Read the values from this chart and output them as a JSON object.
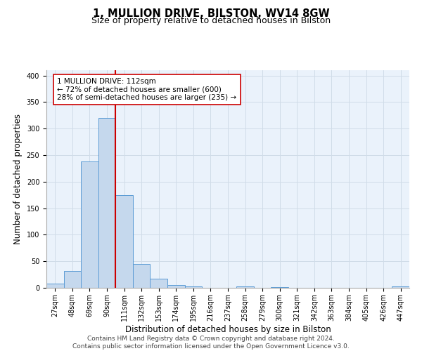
{
  "title": "1, MULLION DRIVE, BILSTON, WV14 8GW",
  "subtitle": "Size of property relative to detached houses in Bilston",
  "xlabel": "Distribution of detached houses by size in Bilston",
  "ylabel": "Number of detached properties",
  "footer_line1": "Contains HM Land Registry data © Crown copyright and database right 2024.",
  "footer_line2": "Contains public sector information licensed under the Open Government Licence v3.0.",
  "bar_labels": [
    "27sqm",
    "48sqm",
    "69sqm",
    "90sqm",
    "111sqm",
    "132sqm",
    "153sqm",
    "174sqm",
    "195sqm",
    "216sqm",
    "237sqm",
    "258sqm",
    "279sqm",
    "300sqm",
    "321sqm",
    "342sqm",
    "363sqm",
    "384sqm",
    "405sqm",
    "426sqm",
    "447sqm"
  ],
  "bar_values": [
    8,
    32,
    238,
    320,
    175,
    45,
    17,
    5,
    2,
    0,
    0,
    3,
    0,
    1,
    0,
    0,
    0,
    0,
    0,
    0,
    2
  ],
  "bar_color": "#c5d8ed",
  "bar_edgecolor": "#5b9bd5",
  "vline_color": "#cc0000",
  "vline_x": 3.5,
  "ylim": [
    0,
    410
  ],
  "annotation_text": "1 MULLION DRIVE: 112sqm\n← 72% of detached houses are smaller (600)\n28% of semi-detached houses are larger (235) →",
  "annotation_box_color": "#ffffff",
  "annotation_box_edgecolor": "#cc0000",
  "annotation_fontsize": 7.5,
  "title_fontsize": 10.5,
  "subtitle_fontsize": 9,
  "xlabel_fontsize": 8.5,
  "ylabel_fontsize": 8.5,
  "tick_fontsize": 7,
  "footer_fontsize": 6.5,
  "bg_color": "#ffffff",
  "grid_color": "#d0dce8",
  "axes_bg_color": "#eaf2fb"
}
